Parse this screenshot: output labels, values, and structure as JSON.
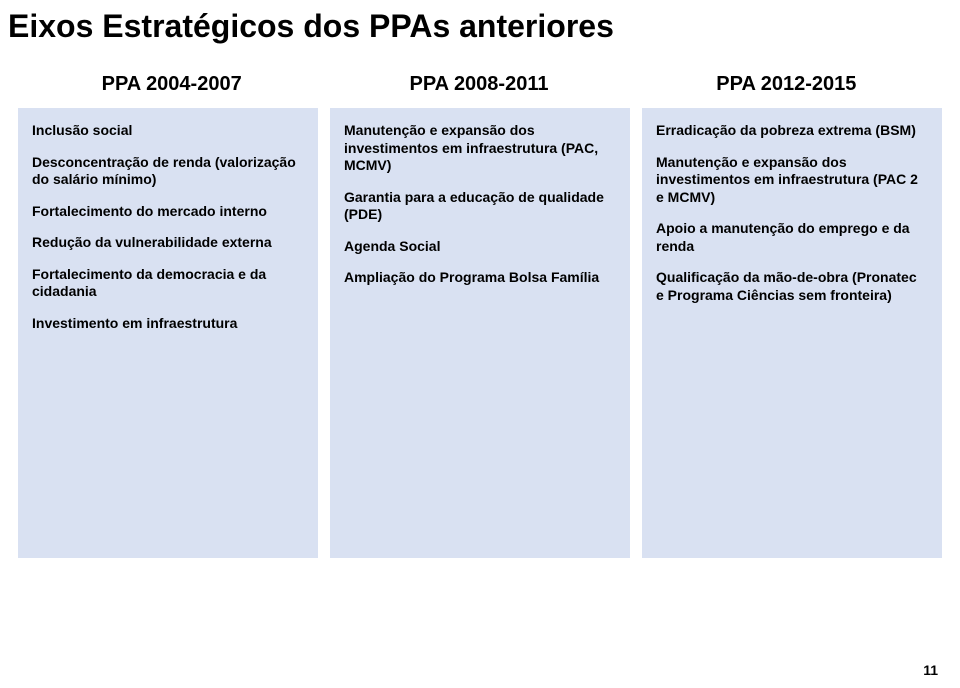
{
  "title": "Eixos Estratégicos dos PPAs anteriores",
  "headers": [
    "PPA 2004-2007",
    "PPA 2008-2011",
    "PPA 2012-2015"
  ],
  "columns": [
    {
      "items": [
        "Inclusão social",
        "Desconcentração de renda (valorização do salário mínimo)",
        "Fortalecimento do mercado interno",
        "Redução da vulnerabilidade externa",
        "Fortalecimento da democracia e da cidadania",
        "Investimento em infraestrutura"
      ]
    },
    {
      "items": [
        "Manutenção e expansão dos investimentos em infraestrutura (PAC, MCMV)",
        "Garantia para a educação de qualidade (PDE)",
        "Agenda Social",
        "Ampliação do Programa Bolsa Família"
      ]
    },
    {
      "items": [
        "Erradicação da pobreza extrema (BSM)",
        "Manutenção e expansão dos investimentos em infraestrutura (PAC 2 e MCMV)",
        "Apoio a manutenção do emprego e da renda",
        "Qualificação da mão-de-obra (Pronatec e Programa Ciências sem fronteira)"
      ]
    }
  ],
  "page_number": "11",
  "colors": {
    "column_bg": "#d9e1f2",
    "text": "#000000",
    "page_bg": "#ffffff"
  },
  "typography": {
    "title_fontsize": 32,
    "header_fontsize": 20,
    "body_fontsize": 14
  }
}
